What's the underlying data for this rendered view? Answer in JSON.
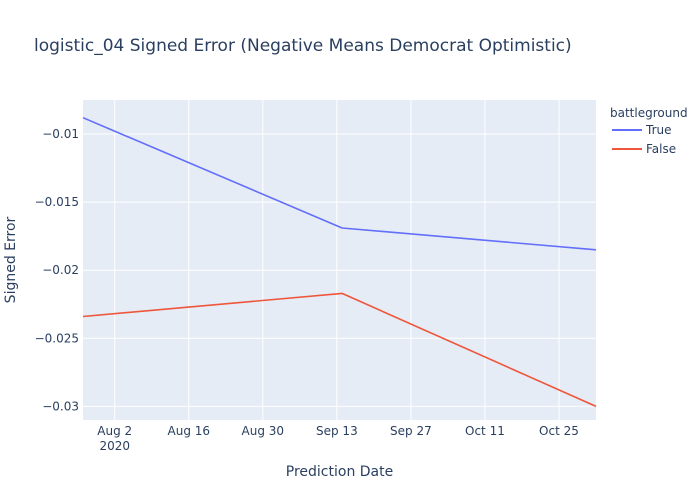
{
  "chart_data": {
    "type": "line",
    "title": "logistic_04 Signed Error (Negative Means Democrat Optimistic)",
    "xlabel": "Prediction Date",
    "ylabel": "Signed Error",
    "x": [
      "2020-07-27",
      "2020-09-14",
      "2020-11-01"
    ],
    "xlim": [
      "2020-07-27",
      "2020-11-01"
    ],
    "ylim": [
      -0.031,
      -0.0075
    ],
    "x_ticks": [
      {
        "date": "2020-08-02",
        "label": "Aug 2",
        "sublabel": "2020"
      },
      {
        "date": "2020-08-16",
        "label": "Aug 16"
      },
      {
        "date": "2020-08-30",
        "label": "Aug 30"
      },
      {
        "date": "2020-09-13",
        "label": "Sep 13"
      },
      {
        "date": "2020-09-27",
        "label": "Sep 27"
      },
      {
        "date": "2020-10-11",
        "label": "Oct 11"
      },
      {
        "date": "2020-10-25",
        "label": "Oct 25"
      }
    ],
    "y_ticks": [
      {
        "value": -0.01,
        "label": "−0.01"
      },
      {
        "value": -0.015,
        "label": "−0.015"
      },
      {
        "value": -0.02,
        "label": "−0.02"
      },
      {
        "value": -0.025,
        "label": "−0.025"
      },
      {
        "value": -0.03,
        "label": "−0.03"
      }
    ],
    "legend": {
      "title": "battleground",
      "position": "top-right"
    },
    "grid": true,
    "series": [
      {
        "name": "True",
        "color": "#636efa",
        "values": [
          -0.0088,
          -0.0169,
          -0.0185
        ]
      },
      {
        "name": "False",
        "color": "#ef553b",
        "values": [
          -0.0234,
          -0.0217,
          -0.03
        ]
      }
    ]
  },
  "colors": {
    "plot_bg": "#e5ecf6",
    "grid": "#ffffff",
    "text": "#2a3f5f"
  }
}
